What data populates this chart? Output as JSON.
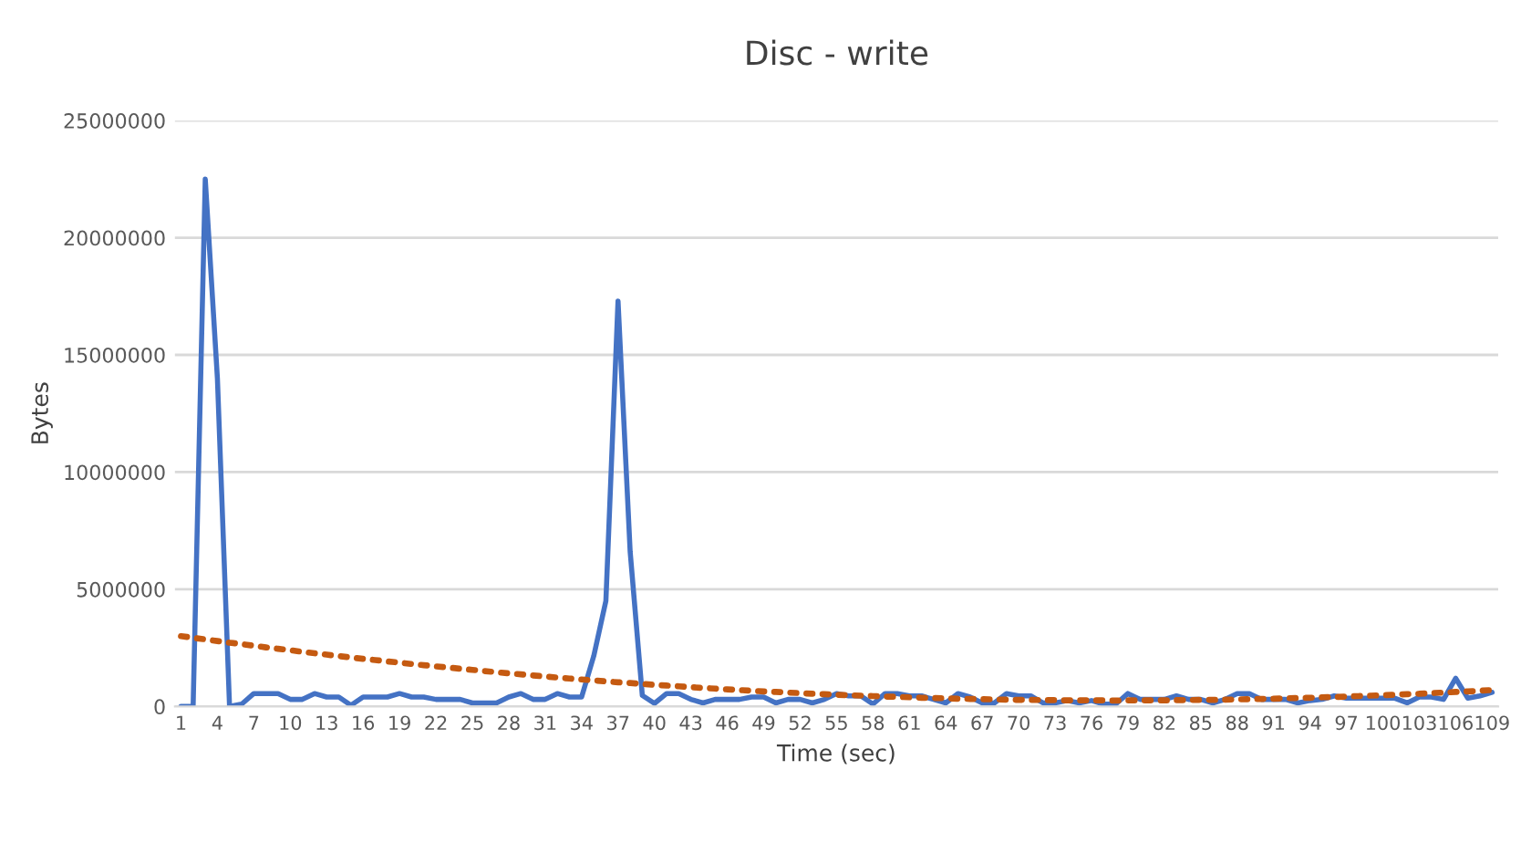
{
  "chart_data": {
    "type": "line",
    "title": "Disc - write",
    "xlabel": "Time (sec)",
    "ylabel": "Bytes",
    "categories": [
      "1",
      null,
      null,
      "4",
      null,
      null,
      "7",
      null,
      null,
      "10",
      null,
      null,
      "13",
      null,
      null,
      "16",
      null,
      null,
      "19",
      null,
      null,
      "22",
      null,
      null,
      "25",
      null,
      null,
      "28",
      null,
      null,
      "31",
      null,
      null,
      "34",
      null,
      null,
      "37",
      null,
      null,
      "40",
      null,
      null,
      "43",
      null,
      null,
      "46",
      null,
      null,
      "49",
      null,
      null,
      "52",
      null,
      null,
      "55",
      null,
      null,
      "58",
      null,
      null,
      "61",
      null,
      null,
      "64",
      null,
      null,
      "67",
      null,
      null,
      "70",
      null,
      null,
      "73",
      null,
      null,
      "76",
      null,
      null,
      "79",
      null,
      null,
      "82",
      null,
      null,
      "85",
      null,
      null,
      "88",
      null,
      null,
      "91",
      null,
      null,
      "94",
      null,
      null,
      "97",
      null,
      null,
      "100",
      null,
      null,
      "103",
      null,
      null,
      "106",
      null,
      null,
      "109"
    ],
    "series": [
      {
        "color": "#4472c4",
        "line_style": "solid",
        "values": [
          0,
          0,
          22500000,
          14000000,
          0,
          100000,
          550000,
          550000,
          550000,
          300000,
          300000,
          550000,
          400000,
          400000,
          50000,
          400000,
          400000,
          400000,
          550000,
          400000,
          400000,
          300000,
          300000,
          300000,
          150000,
          150000,
          150000,
          400000,
          550000,
          300000,
          300000,
          550000,
          400000,
          400000,
          2150000,
          4500000,
          17300000,
          6600000,
          470000,
          130000,
          550000,
          550000,
          300000,
          150000,
          300000,
          300000,
          300000,
          400000,
          400000,
          150000,
          300000,
          300000,
          150000,
          300000,
          550000,
          450000,
          450000,
          100000,
          550000,
          550000,
          450000,
          450000,
          300000,
          150000,
          550000,
          400000,
          150000,
          150000,
          550000,
          450000,
          450000,
          150000,
          150000,
          250000,
          150000,
          250000,
          100000,
          100000,
          550000,
          300000,
          300000,
          300000,
          450000,
          300000,
          300000,
          150000,
          300000,
          550000,
          550000,
          300000,
          300000,
          300000,
          150000,
          250000,
          300000,
          450000,
          350000,
          350000,
          350000,
          350000,
          350000,
          150000,
          400000,
          400000,
          300000,
          1200000,
          350000,
          450000,
          600000
        ]
      },
      {
        "color": "#c55a11",
        "line_style": "dotted",
        "values": [
          3000000,
          2930000,
          2860000,
          2790000,
          2720000,
          2660000,
          2590000,
          2520000,
          2460000,
          2400000,
          2330000,
          2270000,
          2210000,
          2150000,
          2090000,
          2030000,
          1980000,
          1920000,
          1870000,
          1810000,
          1760000,
          1710000,
          1660000,
          1610000,
          1560000,
          1510000,
          1460000,
          1410000,
          1370000,
          1320000,
          1280000,
          1230000,
          1190000,
          1150000,
          1110000,
          1070000,
          1030000,
          1000000,
          960000,
          920000,
          890000,
          860000,
          820000,
          790000,
          760000,
          730000,
          700000,
          670000,
          640000,
          620000,
          590000,
          570000,
          540000,
          520000,
          500000,
          480000,
          460000,
          440000,
          420000,
          410000,
          390000,
          370000,
          360000,
          350000,
          330000,
          320000,
          310000,
          300000,
          290000,
          280000,
          280000,
          270000,
          270000,
          260000,
          260000,
          260000,
          260000,
          250000,
          260000,
          260000,
          260000,
          260000,
          270000,
          270000,
          280000,
          280000,
          290000,
          300000,
          310000,
          320000,
          330000,
          350000,
          360000,
          370000,
          390000,
          400000,
          420000,
          440000,
          460000,
          480000,
          500000,
          520000,
          540000,
          570000,
          590000,
          620000,
          640000,
          670000,
          700000
        ]
      }
    ],
    "ylim": [
      0,
      25000000
    ],
    "yticks": [
      0,
      5000000,
      10000000,
      15000000,
      20000000,
      25000000
    ],
    "grid": "y",
    "legend": false,
    "marker": "none"
  }
}
